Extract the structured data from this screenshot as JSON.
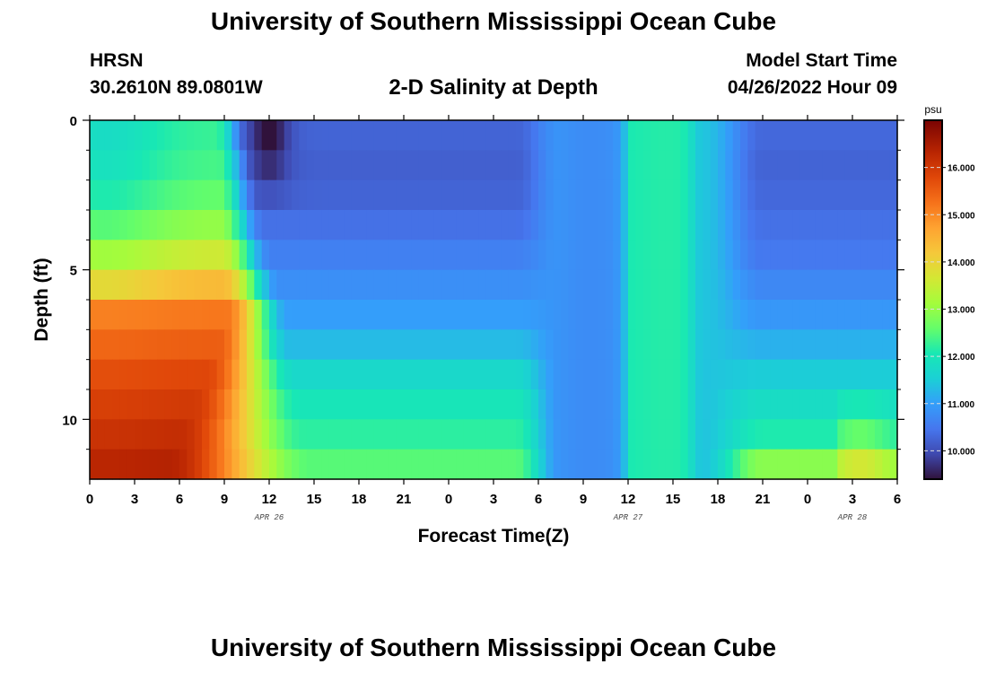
{
  "header": {
    "main_title": "University of Southern Mississippi Ocean Cube",
    "station": "HRSN",
    "coords": "30.2610N  89.0801W",
    "chart_title": "2-D Salinity at Depth",
    "model_start_label": "Model Start Time",
    "model_start_value": "04/26/2022 Hour 09"
  },
  "footer": {
    "main_title": "University of Southern Mississippi Ocean Cube"
  },
  "chart_data": {
    "type": "heatmap",
    "title": "2-D Salinity at Depth",
    "xlabel": "Forecast Time(Z)",
    "ylabel": "Depth (ft)",
    "x_unit": "hours",
    "x_range": [
      0,
      54
    ],
    "y_range": [
      0,
      12
    ],
    "x_ticks": [
      0,
      3,
      6,
      9,
      12,
      15,
      18,
      21,
      24,
      27,
      30,
      33,
      36,
      39,
      42,
      45,
      48,
      51,
      54
    ],
    "x_tick_labels": [
      "0",
      "3",
      "6",
      "9",
      "12",
      "15",
      "18",
      "21",
      "0",
      "3",
      "6",
      "9",
      "12",
      "15",
      "18",
      "21",
      "0",
      "3",
      "6"
    ],
    "date_labels": [
      {
        "hour": 12,
        "text": "APR 26"
      },
      {
        "hour": 36,
        "text": "APR 27"
      },
      {
        "hour": 51,
        "text": "APR 28"
      }
    ],
    "y_ticks": [
      0,
      5,
      10
    ],
    "y_tick_labels": [
      "0",
      "5",
      "10"
    ],
    "y_minor_ticks": [
      1,
      2,
      3,
      4,
      6,
      7,
      8,
      9,
      11
    ],
    "layers": 12,
    "time_columns": 108,
    "colorbar": {
      "unit": "psu",
      "min": 9.4,
      "max": 17.0,
      "ticks": [
        10.0,
        11.0,
        12.0,
        13.0,
        14.0,
        15.0,
        16.0
      ],
      "tick_labels": [
        "10.000",
        "11.000",
        "12.000",
        "13.000",
        "14.000",
        "15.000",
        "16.000"
      ]
    },
    "front_hour_by_layer": [
      9.5,
      9.8,
      10.0,
      10.2,
      10.5,
      10.8,
      11.2,
      11.0,
      10.8,
      10.5,
      10.2,
      10.0
    ],
    "front_transition_hours": [
      1.8,
      2.0,
      2.2,
      2.5,
      2.8,
      3.2,
      3.5,
      4.0,
      5.0,
      6.0,
      7.0,
      8.0
    ],
    "near_field_psu_by_layer": [
      12.3,
      12.4,
      12.6,
      13.0,
      13.6,
      14.4,
      15.2,
      15.5,
      15.8,
      16.0,
      16.2,
      16.4
    ],
    "mid_period_psu_by_layer": [
      10.25,
      10.2,
      10.25,
      10.4,
      10.6,
      10.8,
      11.0,
      11.3,
      11.7,
      12.0,
      12.2,
      12.5
    ],
    "mid_period_end_hour": 28.5,
    "trough_psu": 10.9,
    "trough_center_hour": 33.5,
    "peak_psu": 12.1,
    "peak_center_hour": 38.5,
    "late_period_psu_by_layer": [
      10.3,
      10.25,
      10.3,
      10.4,
      10.5,
      10.7,
      10.9,
      11.2,
      11.5,
      11.8,
      12.1,
      12.9
    ],
    "dip_psu": 9.5,
    "dip_center_hour": 12.0
  }
}
